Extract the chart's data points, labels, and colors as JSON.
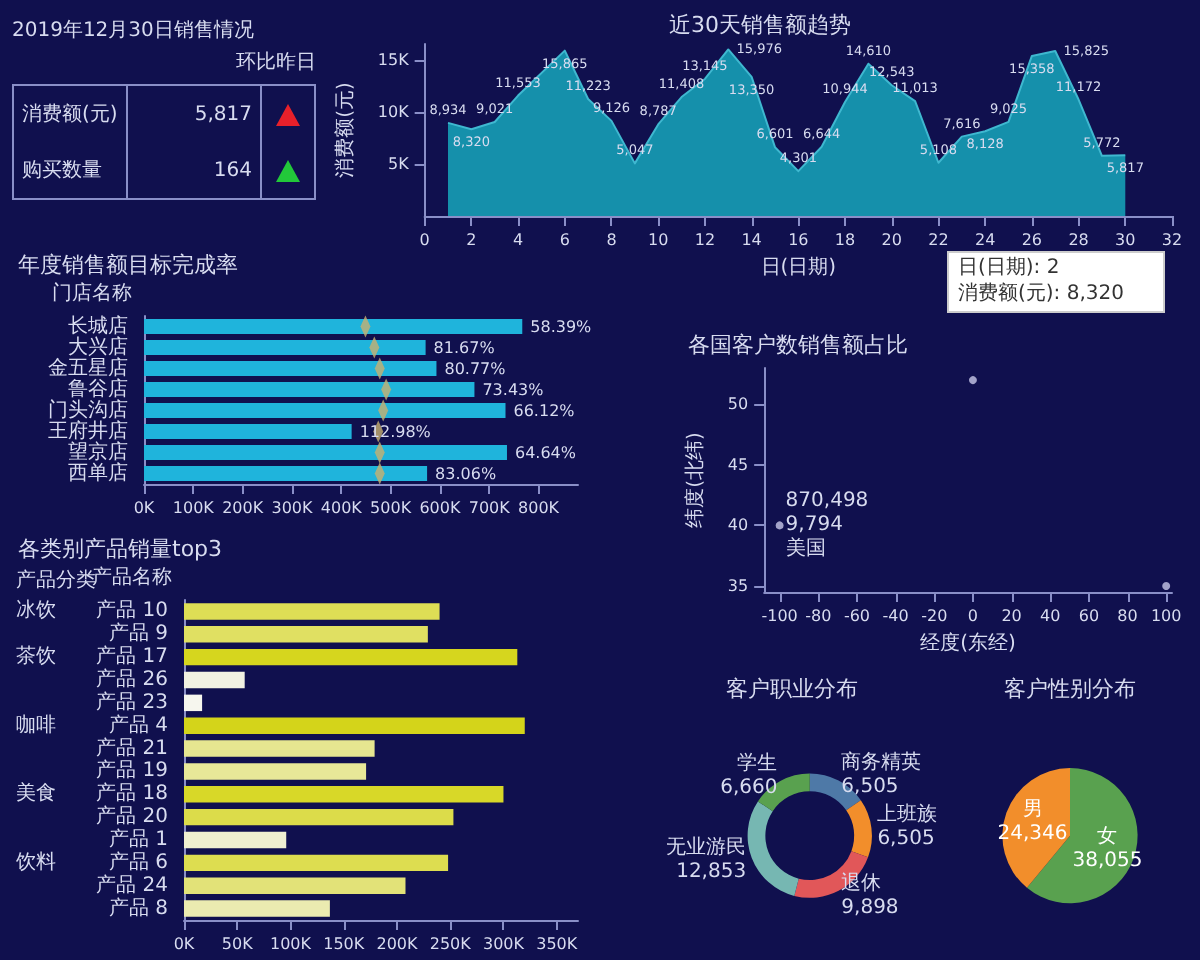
{
  "chart_data": [
    {
      "type": "other",
      "title": "2019年12月30日销售情况",
      "subtitle": "环比昨日",
      "categories": [
        "消费额(元)",
        "购买数量"
      ],
      "values": [
        5817,
        164
      ],
      "value_labels": [
        "5,817",
        "164"
      ],
      "colors": [
        "#e8202a",
        "#22c83a"
      ]
    },
    {
      "type": "area",
      "title": "近30天销售额趋势",
      "xlabel": "日(日期)",
      "ylabel": "消费额(元)",
      "color": "#1590ab",
      "x": [
        1,
        2,
        3,
        4,
        6,
        7,
        8,
        9,
        10,
        11,
        12,
        13,
        14,
        15,
        16,
        17,
        18,
        19,
        20,
        21,
        22,
        23,
        24,
        25,
        26,
        27,
        28,
        29,
        30
      ],
      "values": [
        8934,
        8320,
        9021,
        11553,
        15865,
        11223,
        9126,
        5047,
        8787,
        11408,
        13145,
        15976,
        13350,
        6601,
        4301,
        6644,
        10944,
        14610,
        12543,
        11013,
        5108,
        7616,
        8128,
        9025,
        15358,
        15825,
        11172,
        5772,
        5817
      ],
      "value_labels": [
        "8,934",
        "8,320",
        "9,021",
        "11,553",
        "15,865",
        "11,223",
        "9,126",
        "5,047",
        "8,787",
        "11,408",
        "13,145",
        "15,976",
        "13,350",
        "6,601",
        "4,301",
        "6,644",
        "10,944",
        "14,610",
        "12,543",
        "11,013",
        "5,108",
        "7,616",
        "8,128",
        "9,025",
        "15,358",
        "15,825",
        "11,172",
        "5,772",
        "5,817"
      ],
      "xlim": [
        0,
        32
      ],
      "xticks": [
        0,
        2,
        4,
        6,
        8,
        10,
        12,
        14,
        16,
        18,
        20,
        22,
        24,
        26,
        28,
        30,
        32
      ],
      "ylim": [
        0,
        16500
      ],
      "yticks": [
        {
          "value": 5000,
          "label": "5K"
        },
        {
          "value": 10000,
          "label": "10K"
        },
        {
          "value": 15000,
          "label": "15K"
        }
      ],
      "annotations": [
        "日(日期): 2",
        "消费额(元): 8,320"
      ]
    },
    {
      "type": "bar",
      "orientation": "horizontal",
      "title": "年度销售额目标完成率",
      "ylabel": "门店名称",
      "categories": [
        "长城店",
        "大兴店",
        "金五星店",
        "鲁谷店",
        "门头沟店",
        "王府井店",
        "望京店",
        "西单店"
      ],
      "series": [
        {
          "type": "bar",
          "color": "#1fb4dc",
          "values": [
            767000,
            571000,
            593000,
            670000,
            733000,
            421000,
            736000,
            574000
          ]
        },
        {
          "type": "scatter",
          "color": "#c8b070",
          "marker": "diamond",
          "values": [
            449000,
            467000,
            478000,
            491000,
            485000,
            475000,
            478000,
            478000
          ]
        }
      ],
      "xlim": [
        0,
        880000
      ],
      "xticks": [
        {
          "value": 0,
          "label": "0K"
        },
        {
          "value": 100000,
          "label": "100K"
        },
        {
          "value": 200000,
          "label": "200K"
        },
        {
          "value": 300000,
          "label": "300K"
        },
        {
          "value": 400000,
          "label": "400K"
        },
        {
          "value": 500000,
          "label": "500K"
        },
        {
          "value": 600000,
          "label": "600K"
        },
        {
          "value": 700000,
          "label": "700K"
        },
        {
          "value": 800000,
          "label": "800K"
        }
      ],
      "annotations": [
        {
          "text": "58.39%",
          "x": 767000,
          "y": "长城店"
        },
        {
          "text": "81.67%",
          "x": 571000,
          "y": "大兴店"
        },
        {
          "text": "80.77%",
          "x": 593000,
          "y": "金五星店"
        },
        {
          "text": "73.43%",
          "x": 670000,
          "y": "鲁谷店"
        },
        {
          "text": "66.12%",
          "x": 733000,
          "y": "门头沟店"
        },
        {
          "text": "112.98%",
          "x": 421000,
          "y": "王府井店"
        },
        {
          "text": "64.64%",
          "x": 736000,
          "y": "望京店"
        },
        {
          "text": "83.06%",
          "x": 574000,
          "y": "西单店"
        }
      ]
    },
    {
      "type": "scatter",
      "title": "各国客户数销售额占比",
      "xlabel": "经度(东经)",
      "ylabel": "纬度(北纬)",
      "color": "#c8c8e8",
      "marker": "circle",
      "x": [
        -100,
        0,
        100
      ],
      "values": [
        40,
        52,
        35
      ],
      "xlim": [
        -108,
        103
      ],
      "xticks": [
        -100,
        -80,
        -60,
        -40,
        -20,
        0,
        20,
        40,
        60,
        80,
        100
      ],
      "ylim": [
        34.5,
        53
      ],
      "yticks": [
        35,
        40,
        45,
        50
      ],
      "annotations": [
        {
          "text": "870,498\n9,794\n美国",
          "x": -100,
          "y": 40
        }
      ]
    },
    {
      "type": "bar",
      "orientation": "horizontal",
      "title": "各类别产品销量top3",
      "ylabel": "产品名称",
      "categories": [
        "产品 10",
        "产品 9",
        "产品 17",
        "产品 26",
        "产品 23",
        "产品 4",
        "产品 21",
        "产品 19",
        "产品 18",
        "产品 20",
        "产品 1",
        "产品 6",
        "产品 24",
        "产品 8"
      ],
      "values": [
        240000,
        229000,
        313000,
        57000,
        17000,
        320000,
        179000,
        171000,
        300000,
        253000,
        96000,
        248000,
        208000,
        137000
      ],
      "colors": [
        "#dede55",
        "#e0e062",
        "#d6d61e",
        "#f2f2e2",
        "#f6f6ee",
        "#d4d41a",
        "#e6e690",
        "#e8e898",
        "#d8d828",
        "#dcdc4a",
        "#f0f0d0",
        "#dddd50",
        "#e2e278",
        "#ebebb0"
      ],
      "xlim": [
        0,
        370000
      ],
      "xticks": [
        {
          "value": 0,
          "label": "0K"
        },
        {
          "value": 50000,
          "label": "50K"
        },
        {
          "value": 100000,
          "label": "100K"
        },
        {
          "value": 150000,
          "label": "150K"
        },
        {
          "value": 200000,
          "label": "200K"
        },
        {
          "value": 250000,
          "label": "250K"
        },
        {
          "value": 300000,
          "label": "300K"
        },
        {
          "value": 350000,
          "label": "350K"
        }
      ],
      "annotations": [
        "产品分类",
        "冰饮",
        "茶饮",
        "咖啡",
        "美食",
        "饮料"
      ]
    },
    {
      "type": "donut",
      "title": "客户职业分布",
      "categories": [
        "商务精英",
        "上班族",
        "退休",
        "无业游民",
        "学生"
      ],
      "values": [
        6505,
        6505,
        9898,
        12853,
        6660
      ],
      "value_labels": [
        "6,505",
        "6,505",
        "9,898",
        "12,853",
        "6,660"
      ],
      "colors": [
        "#4e79a7",
        "#f28e2b",
        "#e15759",
        "#76b7b2",
        "#59a14f"
      ]
    },
    {
      "type": "pie",
      "title": "客户性别分布",
      "categories": [
        "女",
        "男"
      ],
      "values": [
        38055,
        24346
      ],
      "value_labels": [
        "38,055",
        "24,346"
      ],
      "colors": [
        "#59a14f",
        "#f28e2b"
      ]
    }
  ]
}
